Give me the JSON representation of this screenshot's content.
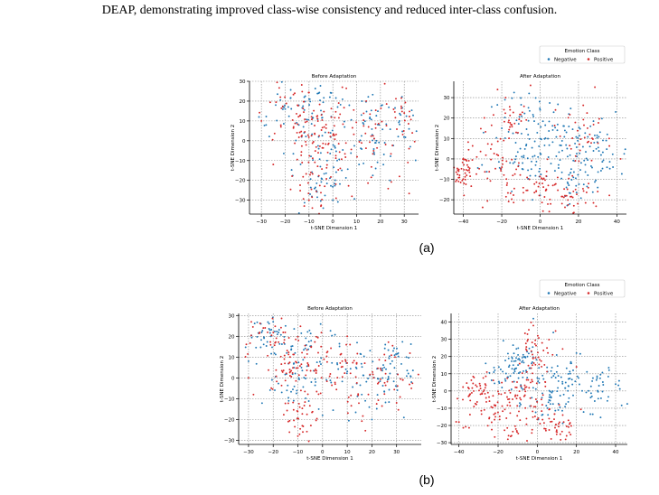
{
  "caption": "DEAP, demonstrating improved class-wise consistency and reduced inter-class confusion.",
  "colors": {
    "negative": "#1f77b4",
    "positive": "#d62728",
    "grid": "#888888",
    "axis": "#000000"
  },
  "chart_data": [
    {
      "type": "scatter",
      "panel": "(a)",
      "title": "Before Adaptation",
      "xlabel": "t-SNE Dimension 1",
      "ylabel": "t-SNE Dimension 2",
      "xlim": [
        -35,
        36
      ],
      "ylim": [
        -37,
        30
      ],
      "xticks": [
        -30,
        -20,
        -10,
        0,
        10,
        20,
        30
      ],
      "yticks": [
        -30,
        -20,
        -10,
        0,
        10,
        20,
        30
      ],
      "grid": true,
      "series": [
        {
          "name": "Negative",
          "color": "#1f77b4",
          "clusters": [
            [
              -18,
              14,
              6,
              6
            ],
            [
              -8,
              18,
              6,
              6
            ],
            [
              5,
              8,
              10,
              8
            ],
            [
              -3,
              -8,
              8,
              9
            ],
            [
              15,
              -2,
              10,
              8
            ],
            [
              25,
              12,
              6,
              6
            ],
            [
              -5,
              -22,
              6,
              6
            ]
          ],
          "count": 200,
          "points": [
            [
              -31,
              12
            ],
            [
              -28,
              8
            ],
            [
              -24,
              18
            ],
            [
              -20,
              16
            ],
            [
              -12,
              22
            ],
            [
              -6,
              24
            ],
            [
              2,
              17
            ],
            [
              12,
              13
            ],
            [
              28,
              10
            ],
            [
              32,
              6
            ],
            [
              0,
              -30
            ],
            [
              -4,
              -34
            ],
            [
              18,
              -14
            ],
            [
              24,
              -20
            ]
          ]
        },
        {
          "name": "Positive",
          "color": "#d62728",
          "clusters": [
            [
              -14,
              16,
              8,
              6
            ],
            [
              -8,
              -20,
              5,
              8
            ],
            [
              -2,
              4,
              8,
              8
            ],
            [
              12,
              -8,
              10,
              10
            ],
            [
              22,
              10,
              8,
              8
            ],
            [
              -10,
              2,
              6,
              6
            ]
          ],
          "count": 220,
          "points": [
            [
              -30,
              10
            ],
            [
              -25,
              -12
            ],
            [
              -22,
              22
            ],
            [
              -16,
              24
            ],
            [
              -10,
              -30
            ],
            [
              -5,
              -33
            ],
            [
              4,
              27
            ],
            [
              14,
              20
            ],
            [
              30,
              14
            ],
            [
              32,
              -4
            ],
            [
              28,
              -18
            ],
            [
              8,
              -28
            ]
          ]
        }
      ]
    },
    {
      "type": "scatter",
      "panel": "(a)",
      "title": "After Adaptation",
      "xlabel": "t-SNE Dimension 1",
      "ylabel": "t-SNE Dimension 2",
      "xlim": [
        -45,
        45
      ],
      "ylim": [
        -27,
        38
      ],
      "xticks": [
        -40,
        -20,
        0,
        20,
        40
      ],
      "yticks": [
        -20,
        -10,
        0,
        10,
        20,
        30
      ],
      "grid": true,
      "legend": {
        "title": "Emotion Class",
        "entries": [
          "Negative",
          "Positive"
        ],
        "placement": "top-right"
      },
      "series": [
        {
          "name": "Negative",
          "color": "#1f77b4",
          "clusters": [
            [
              -5,
              18,
              8,
              7
            ],
            [
              10,
              10,
              10,
              8
            ],
            [
              30,
              5,
              8,
              8
            ],
            [
              -8,
              -2,
              8,
              6
            ],
            [
              20,
              -8,
              8,
              6
            ]
          ],
          "count": 220,
          "points": [
            [
              -20,
              15
            ],
            [
              0,
              24
            ],
            [
              15,
              22
            ],
            [
              35,
              12
            ],
            [
              38,
              -4
            ],
            [
              30,
              -14
            ],
            [
              -4,
              -20
            ]
          ]
        },
        {
          "name": "Positive",
          "color": "#d62728",
          "clusters": [
            [
              -30,
              0,
              8,
              6
            ],
            [
              -15,
              -10,
              8,
              8
            ],
            [
              0,
              -15,
              8,
              5
            ],
            [
              15,
              -18,
              8,
              4
            ],
            [
              22,
              10,
              6,
              8
            ],
            [
              -15,
              20,
              6,
              6
            ],
            [
              -40,
              -6,
              3,
              4
            ]
          ],
          "count": 240,
          "points": [
            [
              -42,
              -8
            ],
            [
              -38,
              -3
            ],
            [
              -18,
              30
            ],
            [
              -5,
              36
            ],
            [
              8,
              24
            ],
            [
              30,
              -16
            ],
            [
              42,
              0
            ],
            [
              36,
              10
            ]
          ]
        }
      ]
    },
    {
      "type": "scatter",
      "panel": "(b)",
      "title": "Before Adaptation",
      "xlabel": "t-SNE Dimension 1",
      "ylabel": "t-SNE Dimension 2",
      "xlim": [
        -34,
        40
      ],
      "ylim": [
        -32,
        31
      ],
      "xticks": [
        -30,
        -20,
        -10,
        0,
        10,
        20,
        30
      ],
      "yticks": [
        -30,
        -20,
        -10,
        0,
        10,
        20,
        30
      ],
      "grid": true,
      "series": [
        {
          "name": "Negative",
          "color": "#1f77b4",
          "clusters": [
            [
              -22,
              20,
              4,
              5
            ],
            [
              -8,
              14,
              6,
              6
            ],
            [
              8,
              2,
              10,
              8
            ],
            [
              22,
              -4,
              8,
              8
            ],
            [
              -12,
              -2,
              6,
              6
            ],
            [
              30,
              5,
              5,
              6
            ]
          ],
          "count": 210,
          "points": [
            [
              -25,
              26
            ],
            [
              -20,
              27
            ],
            [
              -15,
              25
            ],
            [
              -30,
              8
            ],
            [
              0,
              -18
            ],
            [
              20,
              -20
            ],
            [
              36,
              -2
            ],
            [
              34,
              10
            ]
          ]
        },
        {
          "name": "Positive",
          "color": "#d62728",
          "clusters": [
            [
              -20,
              18,
              6,
              6
            ],
            [
              -10,
              -18,
              4,
              8
            ],
            [
              -2,
              10,
              8,
              8
            ],
            [
              10,
              -6,
              10,
              8
            ],
            [
              25,
              4,
              8,
              8
            ],
            [
              -12,
              6,
              5,
              5
            ]
          ],
          "count": 230,
          "points": [
            [
              -30,
              0
            ],
            [
              -28,
              -8
            ],
            [
              -24,
              24
            ],
            [
              -10,
              -28
            ],
            [
              -8,
              -26
            ],
            [
              36,
              -5
            ],
            [
              30,
              -12
            ],
            [
              10,
              20
            ]
          ]
        }
      ]
    },
    {
      "type": "scatter",
      "panel": "(b)",
      "title": "After Adaptation",
      "xlabel": "t-SNE Dimension 1",
      "ylabel": "t-SNE Dimension 2",
      "xlim": [
        -44,
        46
      ],
      "ylim": [
        -31,
        45
      ],
      "xticks": [
        -40,
        -20,
        0,
        20,
        40
      ],
      "yticks": [
        -30,
        -20,
        -10,
        0,
        10,
        20,
        30,
        40
      ],
      "grid": true,
      "legend": {
        "title": "Emotion Class",
        "entries": [
          "Negative",
          "Positive"
        ],
        "placement": "top-right"
      },
      "series": [
        {
          "name": "Negative",
          "color": "#1f77b4",
          "clusters": [
            [
              15,
              10,
              8,
              8
            ],
            [
              30,
              0,
              8,
              6
            ],
            [
              -15,
              10,
              6,
              6
            ],
            [
              5,
              -5,
              6,
              6
            ],
            [
              -8,
              18,
              5,
              5
            ]
          ],
          "count": 210,
          "points": [
            [
              -5,
              20
            ],
            [
              20,
              22
            ],
            [
              40,
              4
            ],
            [
              -2,
              42
            ],
            [
              -18,
              2
            ]
          ]
        },
        {
          "name": "Positive",
          "color": "#d62728",
          "clusters": [
            [
              -25,
              -12,
              8,
              7
            ],
            [
              -10,
              -15,
              8,
              8
            ],
            [
              -30,
              2,
              5,
              5
            ],
            [
              0,
              22,
              4,
              8
            ],
            [
              -8,
              2,
              6,
              6
            ],
            [
              10,
              -20,
              5,
              4
            ]
          ],
          "count": 250,
          "points": [
            [
              -38,
              -5
            ],
            [
              -40,
              -18
            ],
            [
              -2,
              38
            ],
            [
              -5,
              33
            ],
            [
              15,
              -26
            ],
            [
              -15,
              -28
            ],
            [
              20,
              14
            ]
          ]
        }
      ]
    }
  ],
  "sublabels": [
    "(a)",
    "(b)"
  ]
}
